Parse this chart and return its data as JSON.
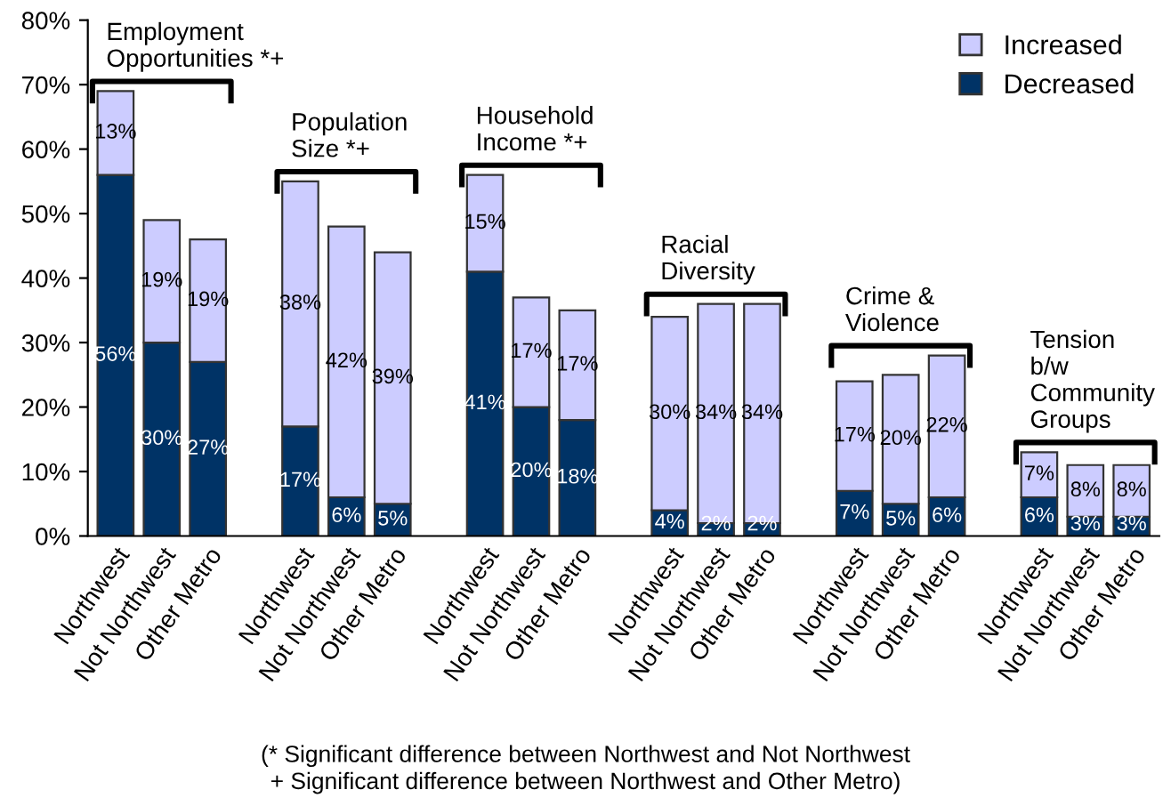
{
  "chart_data": {
    "type": "bar",
    "stacked": true,
    "legend": "top right",
    "grid": false,
    "categories": [
      "Northwest",
      "Not Northwest",
      "Other Metro",
      null,
      "Northwest",
      "Not Northwest",
      "Other Metro",
      null,
      "Northwest",
      "Not Northwest",
      "Other Metro",
      null,
      "Northwest",
      "Not Northwest",
      "Other Metro",
      null,
      "Northwest",
      "Not Northwest",
      "Other Metro",
      null,
      "Northwest",
      "Not Northwest",
      "Other Metro"
    ],
    "series": [
      {
        "name": "Decreased",
        "color": "#003366",
        "values": [
          56,
          30,
          27,
          null,
          17,
          6,
          5,
          null,
          41,
          20,
          18,
          null,
          4,
          2,
          2,
          null,
          7,
          5,
          6,
          null,
          6,
          3,
          3
        ],
        "value_labels": [
          "56%",
          "30%",
          "27%",
          null,
          "17%",
          "6%",
          "5%",
          null,
          "41%",
          "20%",
          "18%",
          null,
          "4%",
          "2%",
          "2%",
          null,
          "7%",
          "5%",
          "6%",
          null,
          "6%",
          "3%",
          "3%"
        ]
      },
      {
        "name": "Increased",
        "color": "#ccccff",
        "values": [
          13,
          19,
          19,
          null,
          38,
          42,
          39,
          null,
          15,
          17,
          17,
          null,
          30,
          34,
          34,
          null,
          17,
          20,
          22,
          null,
          7,
          8,
          8
        ],
        "value_labels": [
          "13%",
          "19%",
          "19%",
          null,
          "38%",
          "42%",
          "39%",
          null,
          "15%",
          "17%",
          "17%",
          null,
          "30%",
          "34%",
          "34%",
          null,
          "17%",
          "20%",
          "22%",
          null,
          "7%",
          "8%",
          "8%"
        ]
      }
    ],
    "ylim": [
      0,
      80
    ],
    "yticks": [
      {
        "value": 0,
        "label": "0%"
      },
      {
        "value": 10,
        "label": "10%"
      },
      {
        "value": 20,
        "label": "20%"
      },
      {
        "value": 30,
        "label": "30%"
      },
      {
        "value": 40,
        "label": "40%"
      },
      {
        "value": 50,
        "label": "50%"
      },
      {
        "value": 60,
        "label": "60%"
      },
      {
        "value": 70,
        "label": "70%"
      },
      {
        "value": 80,
        "label": "80%"
      }
    ],
    "annotations": [
      "Employment\nOpportunities *+",
      "Population\nSize *+",
      "Household\nIncome *+",
      "Racial\nDiversity",
      "Crime &\nViolence",
      "Tension\nb/w\nCommunity\nGroups",
      "(* Significant difference between Northwest and Not Northwest\n+ Significant difference between Northwest and Other Metro)"
    ]
  }
}
